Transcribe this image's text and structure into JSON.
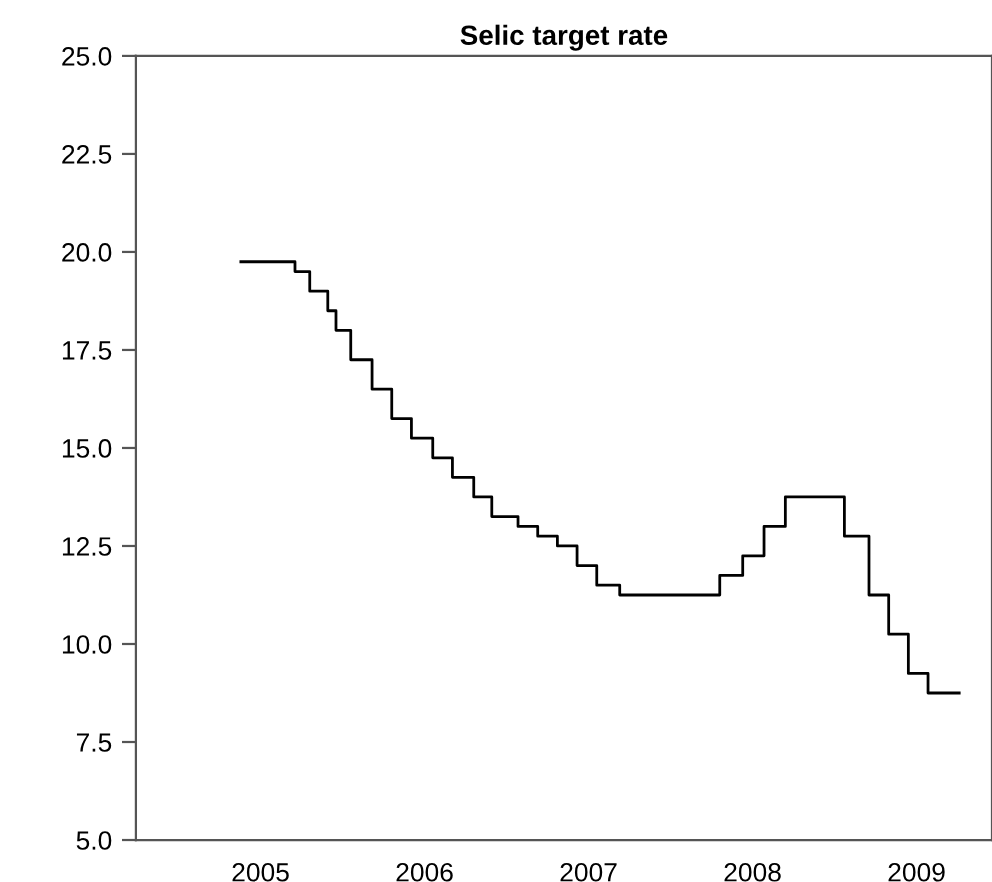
{
  "chart_data": {
    "type": "step",
    "title": "Selic target rate",
    "x": [
      2005.38,
      2005.71,
      2005.8,
      2005.91,
      2005.96,
      2006.05,
      2006.18,
      2006.3,
      2006.42,
      2006.55,
      2006.67,
      2006.8,
      2006.91,
      2007.07,
      2007.19,
      2007.31,
      2007.43,
      2007.55,
      2007.69,
      2008.3,
      2008.44,
      2008.57,
      2008.7,
      2009.06,
      2009.21,
      2009.33,
      2009.45,
      2009.57,
      2009.76
    ],
    "series": [
      {
        "color": "#000000",
        "values": [
          19.75,
          19.5,
          19.0,
          18.5,
          18.0,
          17.25,
          16.5,
          15.75,
          15.25,
          14.75,
          14.25,
          13.75,
          13.25,
          13.0,
          12.75,
          12.5,
          12.0,
          11.5,
          11.25,
          11.75,
          12.25,
          13.0,
          13.75,
          12.75,
          11.25,
          10.25,
          9.25,
          8.75,
          8.75
        ]
      }
    ],
    "xlim": [
      2004.74,
      2009.96
    ],
    "xticks": [
      {
        "value": 2005.5,
        "label": "2005"
      },
      {
        "value": 2006.5,
        "label": "2006"
      },
      {
        "value": 2007.5,
        "label": "2007"
      },
      {
        "value": 2008.5,
        "label": "2008"
      },
      {
        "value": 2009.5,
        "label": "2009"
      }
    ],
    "ylim": [
      5.0,
      25.0
    ],
    "yticks": [
      {
        "value": 5.0,
        "label": "5.0"
      },
      {
        "value": 7.5,
        "label": "7.5"
      },
      {
        "value": 10.0,
        "label": "10.0"
      },
      {
        "value": 12.5,
        "label": "12.5"
      },
      {
        "value": 15.0,
        "label": "15.0"
      },
      {
        "value": 17.5,
        "label": "17.5"
      },
      {
        "value": 20.0,
        "label": "20.0"
      },
      {
        "value": 22.5,
        "label": "22.5"
      },
      {
        "value": 25.0,
        "label": "25.0"
      }
    ],
    "grid": false,
    "legend": false
  }
}
